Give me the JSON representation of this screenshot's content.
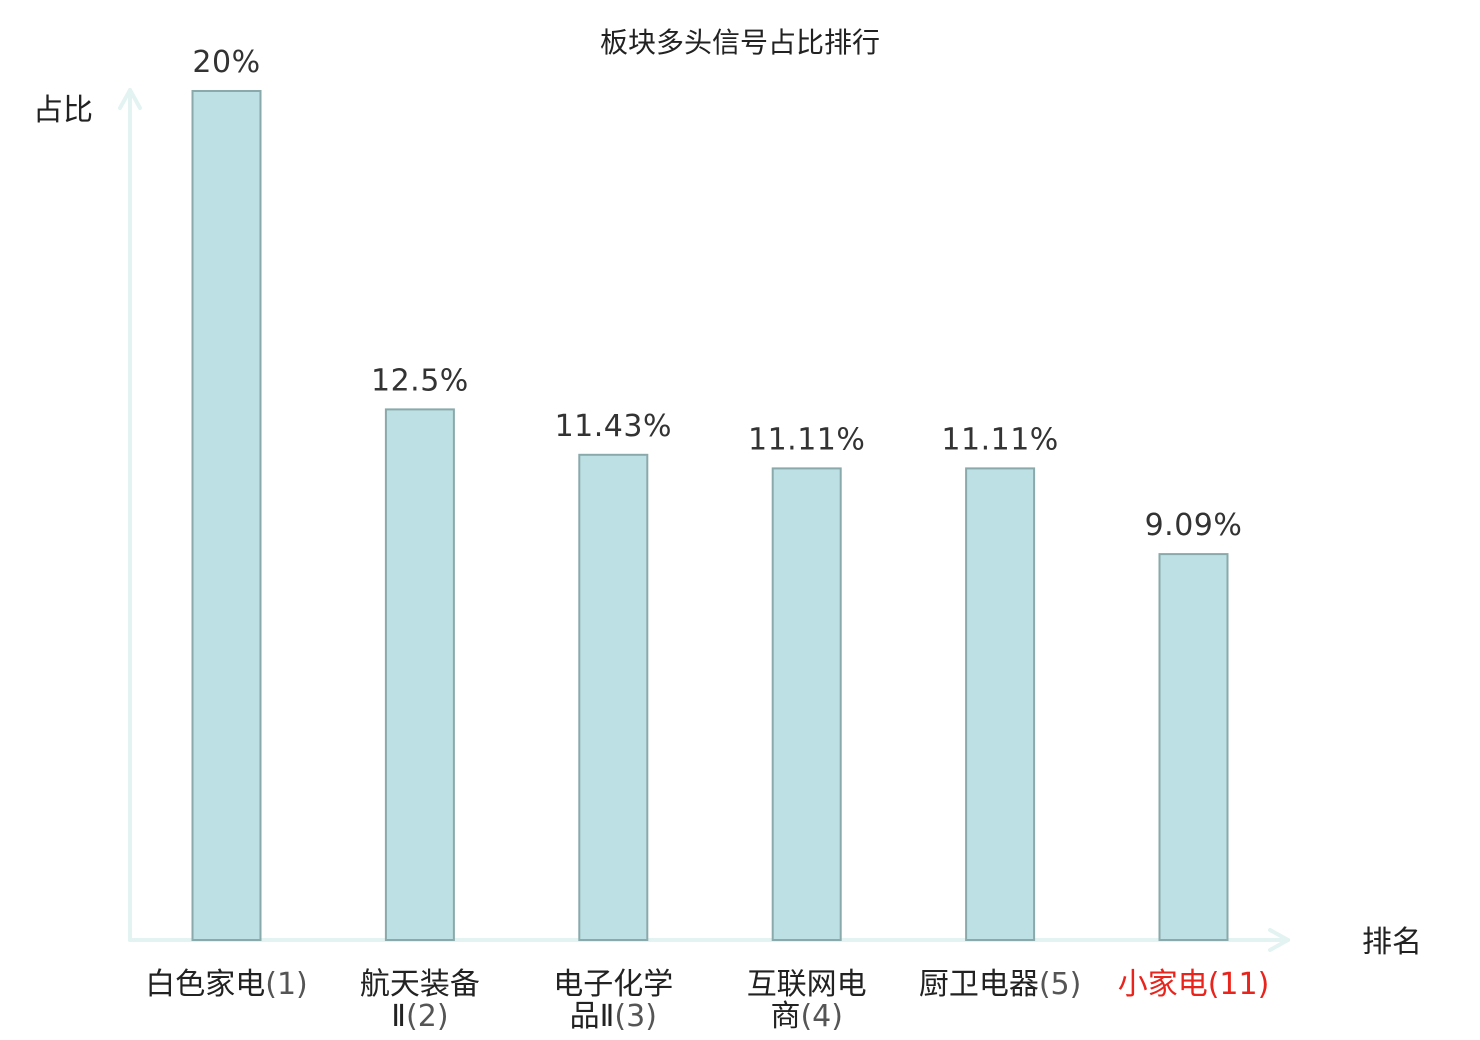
{
  "chart_data": {
    "type": "bar",
    "title": "板块多头信号占比排行",
    "ylabel": "占比",
    "xlabel": "排名",
    "ylim": [
      0,
      20
    ],
    "grid": false,
    "categories": [
      {
        "name_lines": [
          "白色家电"
        ],
        "rank": "(1)",
        "highlight": false
      },
      {
        "name_lines": [
          "航天装备",
          "Ⅱ"
        ],
        "rank": "(2)",
        "highlight": false
      },
      {
        "name_lines": [
          "电子化学",
          "品Ⅱ"
        ],
        "rank": "(3)",
        "highlight": false
      },
      {
        "name_lines": [
          "互联网电",
          "商"
        ],
        "rank": "(4)",
        "highlight": false
      },
      {
        "name_lines": [
          "厨卫电器"
        ],
        "rank": "(5)",
        "highlight": false
      },
      {
        "name_lines": [
          "小家电"
        ],
        "rank": "(11)",
        "highlight": true
      }
    ],
    "values": [
      20,
      12.5,
      11.43,
      11.11,
      11.11,
      9.09
    ],
    "value_labels": [
      "20%",
      "12.5%",
      "11.43%",
      "11.11%",
      "11.11%",
      "9.09%"
    ],
    "colors": {
      "bar_fill": "#bce0e3",
      "bar_stroke": "#8aa9ab",
      "axis": "#e3f3f1",
      "highlight_text": "#e8241c",
      "normal_text": "#222222"
    }
  }
}
